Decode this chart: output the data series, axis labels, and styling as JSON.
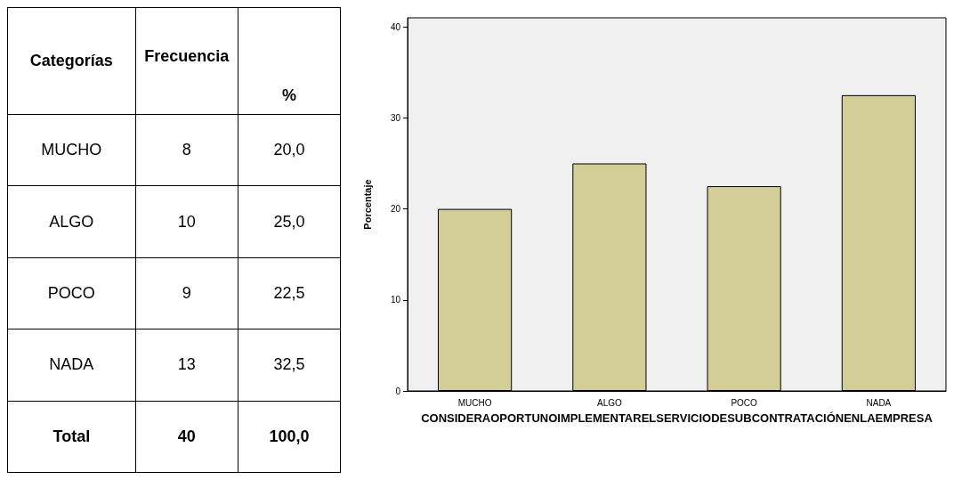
{
  "chart_data": [
    {
      "type": "other",
      "xlabel": "Categorías",
      "categories": [
        "MUCHO",
        "ALGO",
        "POCO",
        "NADA",
        "Total"
      ],
      "series": [
        {
          "name": "Frecuencia",
          "values": [
            8,
            10,
            9,
            13,
            40
          ],
          "value_labels": [
            "8",
            "10",
            "9",
            "13",
            "40"
          ]
        },
        {
          "name": "%",
          "values": [
            20.0,
            25.0,
            22.5,
            32.5,
            100.0
          ],
          "value_labels": [
            "20,0",
            "25,0",
            "22,5",
            "32,5",
            "100,0"
          ]
        }
      ]
    },
    {
      "type": "bar",
      "categories": [
        "MUCHO",
        "ALGO",
        "POCO",
        "NADA"
      ],
      "values": [
        20,
        25,
        22.5,
        32.5
      ],
      "color": "#d3ce97",
      "xlabel": "CONSIDERAOPORTUNOIMPLEMENTARELSERVICIODESUBCONTRATACIÓNENLAEMPRESA",
      "ylabel": "Porcentaje",
      "ylim": [
        0,
        41
      ],
      "yticks": [
        0,
        10,
        20,
        30,
        40
      ],
      "grid": false
    }
  ]
}
